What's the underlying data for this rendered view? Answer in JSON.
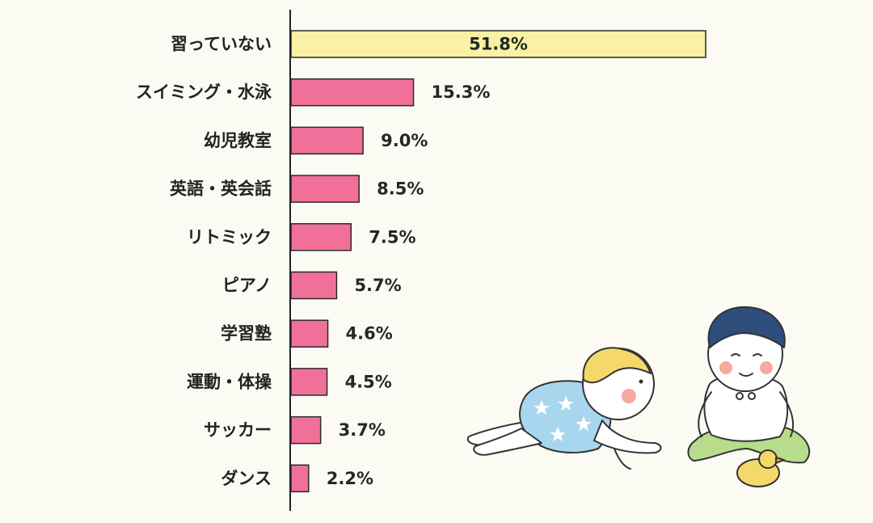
{
  "chart_data": {
    "type": "bar",
    "orientation": "horizontal",
    "categories": [
      "習っていない",
      "スイミング・水泳",
      "幼児教室",
      "英語・英会話",
      "リトミック",
      "ピアノ",
      "学習塾",
      "運動・体操",
      "サッカー",
      "ダンス"
    ],
    "values": [
      51.8,
      15.3,
      9.0,
      8.5,
      7.5,
      5.7,
      4.6,
      4.5,
      3.7,
      2.2
    ],
    "value_labels": [
      "51.8%",
      "15.3%",
      "9.0%",
      "8.5%",
      "7.5%",
      "5.7%",
      "4.6%",
      "4.5%",
      "3.7%",
      "2.2%"
    ],
    "xlim": [
      0,
      52
    ],
    "grid": false,
    "colors": {
      "highlight": "#faf1a4",
      "bar": "#f07099",
      "axis": "#222222"
    },
    "highlight_index": 0
  },
  "illustration": {
    "icons": [
      "crawling-baby-icon",
      "sitting-child-icon",
      "toy-duck-icon"
    ]
  }
}
